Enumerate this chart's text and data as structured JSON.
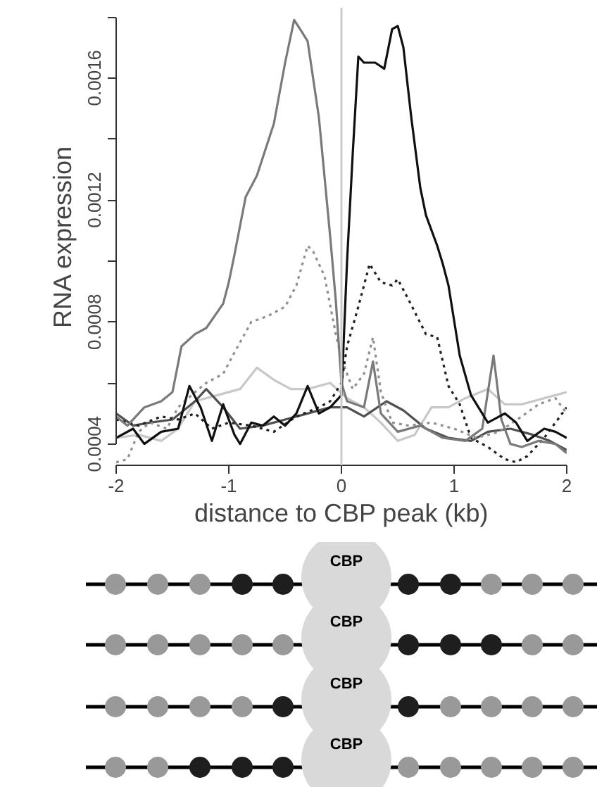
{
  "chart_data": {
    "type": "line",
    "xlabel": "distance to CBP peak (kb)",
    "ylabel": "RNA expression",
    "xlim": [
      -2,
      2
    ],
    "ylim": [
      0.00033,
      0.00183
    ],
    "xticks": [
      -2,
      -1,
      0,
      1,
      2
    ],
    "yticks": [
      0.0004,
      {
        "value": 0.0006,
        "label": null
      },
      0.0008,
      {
        "value": 0.001,
        "label": null
      },
      0.0012,
      {
        "value": 0.0014,
        "label": null
      },
      0.0016,
      {
        "value": 0.0018,
        "label": null
      }
    ],
    "grid": false,
    "marker": "none",
    "ref_lines": [
      {
        "axis": "x",
        "value": 0,
        "label": null,
        "color": "#cccccc"
      }
    ],
    "annotations": [
      "CBP",
      "CBP",
      "CBP",
      "CBP"
    ],
    "series": [
      {
        "color": "#c8c8c8",
        "line_style": "solid",
        "x": [
          -2,
          -1.8,
          -1.6,
          -1.45,
          -1.3,
          -1.1,
          -0.9,
          -0.75,
          -0.6,
          -0.45,
          -0.3,
          -0.1,
          0.05,
          0.2,
          0.35,
          0.5,
          0.65,
          0.8,
          0.95,
          1.1,
          1.3,
          1.45,
          1.6,
          1.8,
          2
        ],
        "values": [
          0.00042,
          0.00043,
          0.00041,
          0.00045,
          0.00054,
          0.00056,
          0.00058,
          0.00065,
          0.00061,
          0.00058,
          0.00058,
          0.0006,
          0.00055,
          0.00052,
          0.00047,
          0.00041,
          0.00043,
          0.00052,
          0.00052,
          0.00055,
          0.00058,
          0.00053,
          0.00053,
          0.00055,
          0.00057
        ]
      },
      {
        "color": "#505050",
        "line_style": "solid",
        "x": [
          -2,
          -1.85,
          -1.7,
          -1.5,
          -1.3,
          -1.2,
          -1.05,
          -0.9,
          -0.7,
          -0.5,
          -0.3,
          -0.1,
          0.05,
          0.2,
          0.4,
          0.55,
          0.75,
          0.95,
          1.15,
          1.3,
          1.5,
          1.7,
          1.85,
          2
        ],
        "values": [
          0.0005,
          0.00046,
          0.00047,
          0.00048,
          0.00054,
          0.00058,
          0.00052,
          0.00045,
          0.00046,
          0.00048,
          0.0005,
          0.00052,
          0.00052,
          0.00049,
          0.00054,
          0.00051,
          0.00045,
          0.00042,
          0.00041,
          0.00044,
          0.00045,
          0.00043,
          0.00041,
          0.00038
        ]
      },
      {
        "color": "#909090",
        "line_style": "dotted",
        "x": [
          -2,
          -1.9,
          -1.8,
          -1.7,
          -1.55,
          -1.45,
          -1.3,
          -1.2,
          -1.05,
          -0.95,
          -0.8,
          -0.65,
          -0.5,
          -0.4,
          -0.3,
          -0.25,
          -0.15,
          -0.05,
          0,
          0.1,
          0.2,
          0.28,
          0.35,
          0.45,
          0.6,
          0.8,
          1.0,
          1.2,
          1.4,
          1.6,
          1.75,
          1.9,
          2
        ],
        "values": [
          0.00034,
          0.00035,
          0.00044,
          0.00047,
          0.00045,
          0.00052,
          0.00057,
          0.0006,
          0.00063,
          0.0007,
          0.0008,
          0.00082,
          0.00085,
          0.00092,
          0.00105,
          0.00103,
          0.00095,
          0.00076,
          0.00068,
          0.00058,
          0.00063,
          0.00075,
          0.00057,
          0.00047,
          0.00046,
          0.00047,
          0.00045,
          0.00042,
          0.00044,
          0.00049,
          0.00053,
          0.00055,
          0.0005
        ]
      },
      {
        "color": "#202020",
        "line_style": "dotted",
        "x": [
          -2,
          -1.8,
          -1.6,
          -1.45,
          -1.3,
          -1.15,
          -1.0,
          -0.8,
          -0.6,
          -0.4,
          -0.2,
          -0.1,
          0,
          0.05,
          0.15,
          0.25,
          0.35,
          0.45,
          0.5,
          0.6,
          0.75,
          0.85,
          0.95,
          1.05,
          1.15,
          1.3,
          1.45,
          1.55,
          1.65,
          1.8,
          1.9,
          2
        ],
        "values": [
          0.00048,
          0.00046,
          0.00049,
          0.00048,
          0.0005,
          0.00045,
          0.00047,
          0.00046,
          0.00044,
          0.00049,
          0.00052,
          0.00054,
          0.0006,
          0.00072,
          0.00085,
          0.00099,
          0.00093,
          0.00092,
          0.00094,
          0.00087,
          0.00076,
          0.00075,
          0.00059,
          0.00053,
          0.00042,
          0.00039,
          0.00035,
          0.00034,
          0.00036,
          0.00042,
          0.00047,
          0.00052
        ]
      },
      {
        "color": "#7a7a7a",
        "line_style": "solid",
        "x": [
          -2,
          -1.9,
          -1.75,
          -1.6,
          -1.5,
          -1.42,
          -1.3,
          -1.2,
          -1.05,
          -1.0,
          -0.95,
          -0.85,
          -0.75,
          -0.6,
          -0.5,
          -0.42,
          -0.35,
          -0.3,
          -0.2,
          -0.1,
          -0.05,
          0,
          0.05,
          0.2,
          0.28,
          0.35,
          0.5,
          0.7,
          0.9,
          1.1,
          1.25,
          1.35,
          1.42,
          1.5,
          1.6,
          1.75,
          1.9,
          2
        ],
        "values": [
          0.00049,
          0.00046,
          0.00052,
          0.00054,
          0.00057,
          0.00072,
          0.00076,
          0.00078,
          0.00086,
          0.00093,
          0.00102,
          0.00121,
          0.00128,
          0.00145,
          0.00165,
          0.00179,
          0.00175,
          0.00172,
          0.00147,
          0.00108,
          0.00087,
          0.0006,
          0.00054,
          0.00052,
          0.00067,
          0.0005,
          0.00044,
          0.00046,
          0.00042,
          0.00041,
          0.00045,
          0.00069,
          0.00048,
          0.0004,
          0.00039,
          0.00041,
          0.0004,
          0.00037
        ]
      },
      {
        "color": "#101010",
        "line_style": "solid",
        "x": [
          -2,
          -1.85,
          -1.75,
          -1.6,
          -1.45,
          -1.35,
          -1.25,
          -1.15,
          -1.05,
          -0.95,
          -0.9,
          -0.8,
          -0.7,
          -0.6,
          -0.5,
          -0.4,
          -0.3,
          -0.2,
          -0.1,
          0,
          0.05,
          0.1,
          0.15,
          0.2,
          0.3,
          0.38,
          0.45,
          0.5,
          0.55,
          0.62,
          0.7,
          0.75,
          0.85,
          0.9,
          0.95,
          1.05,
          1.15,
          1.3,
          1.45,
          1.55,
          1.65,
          1.8,
          1.9,
          2
        ],
        "values": [
          0.00042,
          0.00045,
          0.0004,
          0.00044,
          0.00045,
          0.00059,
          0.00052,
          0.00041,
          0.00053,
          0.00043,
          0.0004,
          0.00047,
          0.00046,
          0.00049,
          0.00046,
          0.0005,
          0.00059,
          0.0005,
          0.00052,
          0.00056,
          0.001,
          0.00135,
          0.00167,
          0.00165,
          0.00165,
          0.00163,
          0.00176,
          0.00177,
          0.0017,
          0.00147,
          0.00124,
          0.00115,
          0.00105,
          0.00099,
          0.00092,
          0.00069,
          0.00056,
          0.00047,
          0.0005,
          0.00047,
          0.00041,
          0.00045,
          0.00044,
          0.00042
        ]
      }
    ]
  }
}
